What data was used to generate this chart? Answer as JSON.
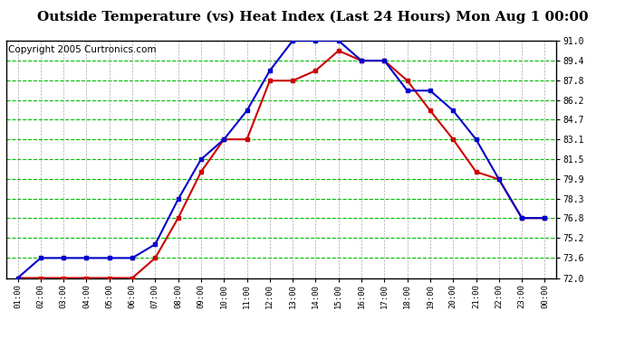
{
  "title": "Outside Temperature (vs) Heat Index (Last 24 Hours) Mon Aug 1 00:00",
  "copyright": "Copyright 2005 Curtronics.com",
  "x_labels": [
    "01:00",
    "02:00",
    "03:00",
    "04:00",
    "05:00",
    "06:00",
    "07:00",
    "08:00",
    "09:00",
    "10:00",
    "11:00",
    "12:00",
    "13:00",
    "14:00",
    "15:00",
    "16:00",
    "17:00",
    "18:00",
    "19:00",
    "20:00",
    "21:00",
    "22:00",
    "23:00",
    "00:00"
  ],
  "blue_data": [
    72.0,
    73.6,
    73.6,
    73.6,
    73.6,
    73.6,
    74.7,
    78.3,
    81.5,
    83.1,
    85.4,
    88.6,
    91.0,
    91.0,
    91.0,
    89.4,
    89.4,
    87.0,
    87.0,
    85.4,
    83.1,
    79.9,
    76.8,
    76.8
  ],
  "red_data": [
    72.0,
    72.0,
    72.0,
    72.0,
    72.0,
    72.0,
    73.6,
    76.8,
    80.5,
    83.1,
    83.1,
    87.8,
    87.8,
    88.6,
    90.2,
    89.4,
    89.4,
    87.8,
    85.4,
    83.1,
    80.5,
    79.9,
    76.8,
    76.8
  ],
  "ylim": [
    72.0,
    91.0
  ],
  "yticks": [
    72.0,
    73.6,
    75.2,
    76.8,
    78.3,
    79.9,
    81.5,
    83.1,
    84.7,
    86.2,
    87.8,
    89.4,
    91.0
  ],
  "blue_color": "#0000cc",
  "red_color": "#cc0000",
  "grid_color": "#00bb00",
  "vgrid_color": "#aaaaaa",
  "bg_color": "#ffffff",
  "title_fontsize": 11,
  "copyright_fontsize": 7.5
}
